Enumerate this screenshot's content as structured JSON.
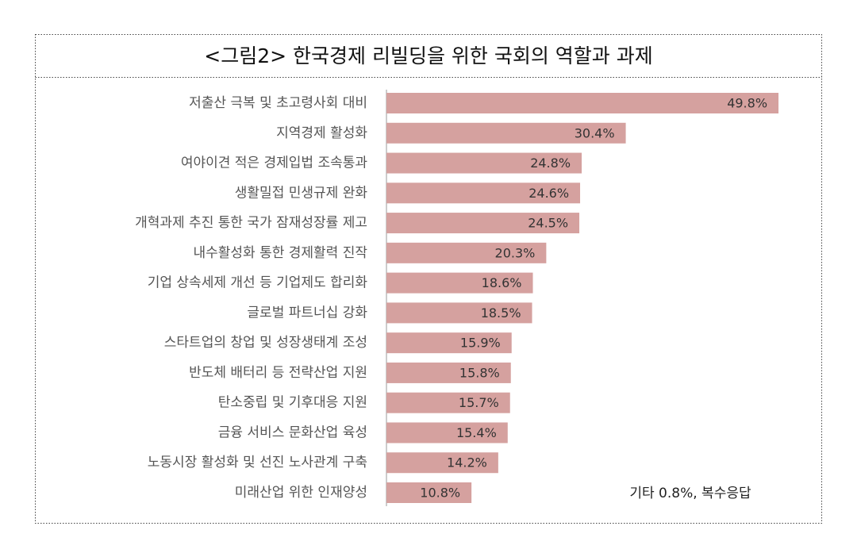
{
  "chart_data": {
    "type": "hbar",
    "title": "<그림2> 한국경제 리빌딩을 위한 국회의 역할과 과제",
    "categories": [
      "저출산 극복 및 초고령사회 대비",
      "지역경제 활성화",
      "여야이견 적은 경제입법 조속통과",
      "생활밀접 민생규제 완화",
      "개혁과제 추진 통한 국가 잠재성장률 제고",
      "내수활성화 통한 경제활력 진작",
      "기업 상속세제 개선 등 기업제도 합리화",
      "글로벌 파트너십 강화",
      "스타트업의 창업 및 성장생태계 조성",
      "반도체 배터리 등 전략산업 지원",
      "탄소중립 및 기후대응 지원",
      "금융 서비스 문화산업 육성",
      "노동시장 활성화 및 선진 노사관계 구축",
      "미래산업 위한 인재양성"
    ],
    "values": [
      49.8,
      30.4,
      24.8,
      24.6,
      24.5,
      20.3,
      18.6,
      18.5,
      15.9,
      15.8,
      15.7,
      15.4,
      14.2,
      10.8
    ],
    "value_labels": [
      "49.8%",
      "30.4%",
      "24.8%",
      "24.6%",
      "24.5%",
      "20.3%",
      "18.6%",
      "18.5%",
      "15.9%",
      "15.8%",
      "15.7%",
      "15.4%",
      "14.2%",
      "10.8%"
    ],
    "color": "#d5a19f",
    "xlim": [
      0,
      50
    ],
    "annotation": "기타 0.8%, 복수응답"
  }
}
